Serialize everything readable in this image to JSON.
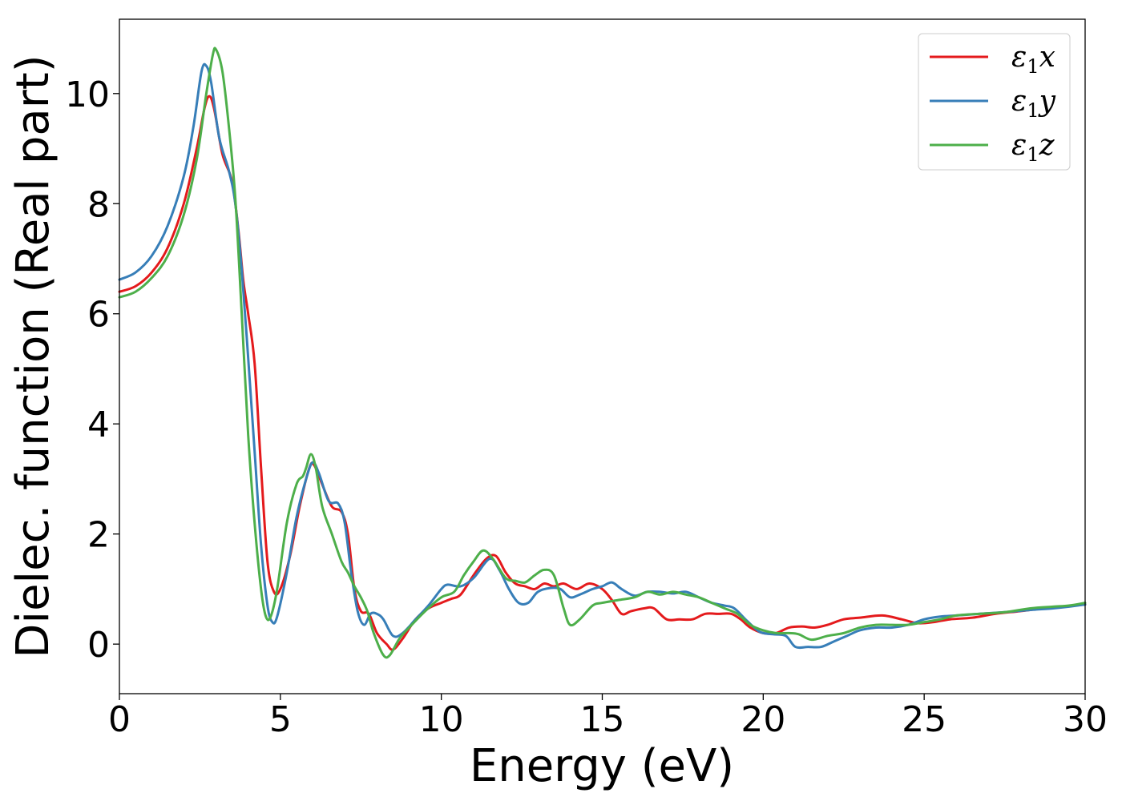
{
  "chart_data": {
    "type": "line",
    "xlabel": "Energy (eV)",
    "ylabel": "Dielec. function (Real part)",
    "xlim": [
      0,
      30
    ],
    "ylim": [
      -0.9,
      11.35
    ],
    "xticks": [
      0,
      5,
      10,
      15,
      20,
      25,
      30
    ],
    "yticks": [
      0,
      2,
      4,
      6,
      8,
      10
    ],
    "legend_position": "top-right",
    "grid": false,
    "series": [
      {
        "name": "ε₁x",
        "legend_base": "ε",
        "legend_sub": "1",
        "legend_var": "x",
        "color": "#e41a1c",
        "points": [
          [
            0,
            6.4
          ],
          [
            0.5,
            6.5
          ],
          [
            1.0,
            6.75
          ],
          [
            1.5,
            7.2
          ],
          [
            2.0,
            8.0
          ],
          [
            2.4,
            9.0
          ],
          [
            2.65,
            9.75
          ],
          [
            2.8,
            9.95
          ],
          [
            2.95,
            9.7
          ],
          [
            3.2,
            8.9
          ],
          [
            3.5,
            8.4
          ],
          [
            3.7,
            7.5
          ],
          [
            3.85,
            6.6
          ],
          [
            4.0,
            6.0
          ],
          [
            4.2,
            5.1
          ],
          [
            4.4,
            3.2
          ],
          [
            4.6,
            1.5
          ],
          [
            4.8,
            0.95
          ],
          [
            5.0,
            1.0
          ],
          [
            5.3,
            1.6
          ],
          [
            5.6,
            2.5
          ],
          [
            5.9,
            3.2
          ],
          [
            6.05,
            3.25
          ],
          [
            6.3,
            2.9
          ],
          [
            6.6,
            2.5
          ],
          [
            6.9,
            2.4
          ],
          [
            7.1,
            2.0
          ],
          [
            7.3,
            1.0
          ],
          [
            7.5,
            0.6
          ],
          [
            7.75,
            0.55
          ],
          [
            8.0,
            0.2
          ],
          [
            8.3,
            0.0
          ],
          [
            8.5,
            -0.1
          ],
          [
            8.8,
            0.1
          ],
          [
            9.2,
            0.45
          ],
          [
            9.6,
            0.65
          ],
          [
            10.0,
            0.75
          ],
          [
            10.3,
            0.82
          ],
          [
            10.6,
            0.9
          ],
          [
            11.0,
            1.25
          ],
          [
            11.4,
            1.55
          ],
          [
            11.7,
            1.6
          ],
          [
            12.0,
            1.3
          ],
          [
            12.3,
            1.1
          ],
          [
            12.6,
            1.05
          ],
          [
            12.9,
            1.0
          ],
          [
            13.2,
            1.1
          ],
          [
            13.5,
            1.05
          ],
          [
            13.8,
            1.1
          ],
          [
            14.2,
            1.0
          ],
          [
            14.6,
            1.1
          ],
          [
            15.0,
            1.0
          ],
          [
            15.3,
            0.8
          ],
          [
            15.6,
            0.55
          ],
          [
            15.9,
            0.6
          ],
          [
            16.3,
            0.65
          ],
          [
            16.6,
            0.65
          ],
          [
            17.0,
            0.45
          ],
          [
            17.4,
            0.45
          ],
          [
            17.8,
            0.45
          ],
          [
            18.2,
            0.55
          ],
          [
            18.6,
            0.55
          ],
          [
            19.0,
            0.55
          ],
          [
            19.3,
            0.45
          ],
          [
            19.6,
            0.3
          ],
          [
            20.0,
            0.2
          ],
          [
            20.4,
            0.2
          ],
          [
            20.8,
            0.3
          ],
          [
            21.2,
            0.32
          ],
          [
            21.6,
            0.3
          ],
          [
            22.0,
            0.35
          ],
          [
            22.5,
            0.45
          ],
          [
            23.0,
            0.48
          ],
          [
            23.7,
            0.52
          ],
          [
            24.3,
            0.45
          ],
          [
            24.8,
            0.38
          ],
          [
            25.3,
            0.4
          ],
          [
            25.8,
            0.45
          ],
          [
            26.5,
            0.48
          ],
          [
            27.2,
            0.55
          ],
          [
            28.0,
            0.6
          ],
          [
            28.7,
            0.65
          ],
          [
            29.3,
            0.68
          ],
          [
            30.0,
            0.72
          ]
        ]
      },
      {
        "name": "ε₁y",
        "legend_base": "ε",
        "legend_sub": "1",
        "legend_var": "y",
        "color": "#377eb8",
        "points": [
          [
            0,
            6.62
          ],
          [
            0.5,
            6.75
          ],
          [
            1.0,
            7.05
          ],
          [
            1.5,
            7.6
          ],
          [
            2.0,
            8.5
          ],
          [
            2.3,
            9.4
          ],
          [
            2.55,
            10.4
          ],
          [
            2.7,
            10.5
          ],
          [
            2.85,
            10.2
          ],
          [
            3.1,
            9.2
          ],
          [
            3.4,
            8.6
          ],
          [
            3.6,
            8.0
          ],
          [
            3.8,
            6.8
          ],
          [
            4.0,
            5.2
          ],
          [
            4.2,
            3.5
          ],
          [
            4.4,
            1.8
          ],
          [
            4.6,
            0.7
          ],
          [
            4.75,
            0.4
          ],
          [
            4.9,
            0.5
          ],
          [
            5.2,
            1.3
          ],
          [
            5.5,
            2.3
          ],
          [
            5.8,
            3.0
          ],
          [
            6.0,
            3.3
          ],
          [
            6.2,
            3.1
          ],
          [
            6.5,
            2.6
          ],
          [
            6.8,
            2.55
          ],
          [
            7.0,
            2.2
          ],
          [
            7.2,
            1.3
          ],
          [
            7.4,
            0.6
          ],
          [
            7.6,
            0.35
          ],
          [
            7.8,
            0.55
          ],
          [
            8.0,
            0.55
          ],
          [
            8.2,
            0.45
          ],
          [
            8.5,
            0.15
          ],
          [
            8.8,
            0.2
          ],
          [
            9.2,
            0.45
          ],
          [
            9.6,
            0.7
          ],
          [
            10.0,
            1.0
          ],
          [
            10.2,
            1.08
          ],
          [
            10.6,
            1.05
          ],
          [
            11.0,
            1.2
          ],
          [
            11.5,
            1.55
          ],
          [
            11.8,
            1.35
          ],
          [
            12.1,
            1.0
          ],
          [
            12.4,
            0.75
          ],
          [
            12.7,
            0.75
          ],
          [
            13.0,
            0.95
          ],
          [
            13.4,
            1.02
          ],
          [
            13.7,
            1.0
          ],
          [
            14.0,
            0.85
          ],
          [
            14.3,
            0.9
          ],
          [
            14.7,
            1.0
          ],
          [
            15.0,
            1.05
          ],
          [
            15.3,
            1.12
          ],
          [
            15.6,
            1.0
          ],
          [
            16.0,
            0.88
          ],
          [
            16.4,
            0.95
          ],
          [
            16.8,
            0.95
          ],
          [
            17.2,
            0.92
          ],
          [
            17.6,
            0.95
          ],
          [
            18.0,
            0.85
          ],
          [
            18.4,
            0.75
          ],
          [
            18.8,
            0.7
          ],
          [
            19.1,
            0.65
          ],
          [
            19.5,
            0.42
          ],
          [
            19.9,
            0.22
          ],
          [
            20.3,
            0.18
          ],
          [
            20.7,
            0.15
          ],
          [
            21.0,
            -0.05
          ],
          [
            21.4,
            -0.05
          ],
          [
            21.8,
            -0.05
          ],
          [
            22.2,
            0.05
          ],
          [
            22.6,
            0.15
          ],
          [
            23.0,
            0.25
          ],
          [
            23.5,
            0.3
          ],
          [
            24.0,
            0.3
          ],
          [
            24.5,
            0.35
          ],
          [
            25.0,
            0.45
          ],
          [
            25.5,
            0.5
          ],
          [
            26.0,
            0.52
          ],
          [
            26.7,
            0.55
          ],
          [
            27.5,
            0.58
          ],
          [
            28.3,
            0.62
          ],
          [
            29.0,
            0.65
          ],
          [
            29.5,
            0.68
          ],
          [
            30.0,
            0.72
          ]
        ]
      },
      {
        "name": "ε₁z",
        "legend_base": "ε",
        "legend_sub": "1",
        "legend_var": "z",
        "color": "#4daf4a",
        "points": [
          [
            0,
            6.3
          ],
          [
            0.5,
            6.4
          ],
          [
            1.0,
            6.65
          ],
          [
            1.5,
            7.05
          ],
          [
            2.0,
            7.8
          ],
          [
            2.4,
            8.8
          ],
          [
            2.7,
            10.0
          ],
          [
            2.9,
            10.7
          ],
          [
            3.0,
            10.8
          ],
          [
            3.2,
            10.4
          ],
          [
            3.4,
            9.4
          ],
          [
            3.6,
            8.1
          ],
          [
            3.8,
            6.0
          ],
          [
            4.0,
            3.8
          ],
          [
            4.2,
            2.2
          ],
          [
            4.4,
            1.0
          ],
          [
            4.55,
            0.5
          ],
          [
            4.7,
            0.5
          ],
          [
            4.9,
            1.0
          ],
          [
            5.2,
            2.2
          ],
          [
            5.5,
            2.9
          ],
          [
            5.7,
            3.05
          ],
          [
            5.8,
            3.2
          ],
          [
            5.95,
            3.45
          ],
          [
            6.1,
            3.2
          ],
          [
            6.3,
            2.5
          ],
          [
            6.6,
            2.0
          ],
          [
            6.9,
            1.5
          ],
          [
            7.1,
            1.3
          ],
          [
            7.3,
            1.05
          ],
          [
            7.5,
            0.85
          ],
          [
            7.7,
            0.6
          ],
          [
            7.9,
            0.2
          ],
          [
            8.2,
            -0.2
          ],
          [
            8.4,
            -0.2
          ],
          [
            8.7,
            0.1
          ],
          [
            9.0,
            0.3
          ],
          [
            9.5,
            0.6
          ],
          [
            10.0,
            0.85
          ],
          [
            10.4,
            0.95
          ],
          [
            10.7,
            1.25
          ],
          [
            11.0,
            1.5
          ],
          [
            11.3,
            1.7
          ],
          [
            11.6,
            1.55
          ],
          [
            12.0,
            1.2
          ],
          [
            12.3,
            1.15
          ],
          [
            12.6,
            1.12
          ],
          [
            12.9,
            1.25
          ],
          [
            13.2,
            1.35
          ],
          [
            13.5,
            1.25
          ],
          [
            13.8,
            0.65
          ],
          [
            14.0,
            0.35
          ],
          [
            14.3,
            0.45
          ],
          [
            14.7,
            0.7
          ],
          [
            15.0,
            0.75
          ],
          [
            15.5,
            0.8
          ],
          [
            16.0,
            0.85
          ],
          [
            16.4,
            0.95
          ],
          [
            16.8,
            0.9
          ],
          [
            17.2,
            0.95
          ],
          [
            17.6,
            0.9
          ],
          [
            18.0,
            0.85
          ],
          [
            18.4,
            0.75
          ],
          [
            18.8,
            0.65
          ],
          [
            19.2,
            0.55
          ],
          [
            19.6,
            0.35
          ],
          [
            20.0,
            0.25
          ],
          [
            20.4,
            0.2
          ],
          [
            20.8,
            0.2
          ],
          [
            21.1,
            0.18
          ],
          [
            21.5,
            0.08
          ],
          [
            22.0,
            0.15
          ],
          [
            22.5,
            0.2
          ],
          [
            23.0,
            0.3
          ],
          [
            23.5,
            0.35
          ],
          [
            24.0,
            0.35
          ],
          [
            24.5,
            0.35
          ],
          [
            25.0,
            0.4
          ],
          [
            25.5,
            0.45
          ],
          [
            26.0,
            0.52
          ],
          [
            26.7,
            0.55
          ],
          [
            27.5,
            0.58
          ],
          [
            28.3,
            0.65
          ],
          [
            29.0,
            0.68
          ],
          [
            29.5,
            0.7
          ],
          [
            30.0,
            0.75
          ]
        ]
      }
    ]
  }
}
